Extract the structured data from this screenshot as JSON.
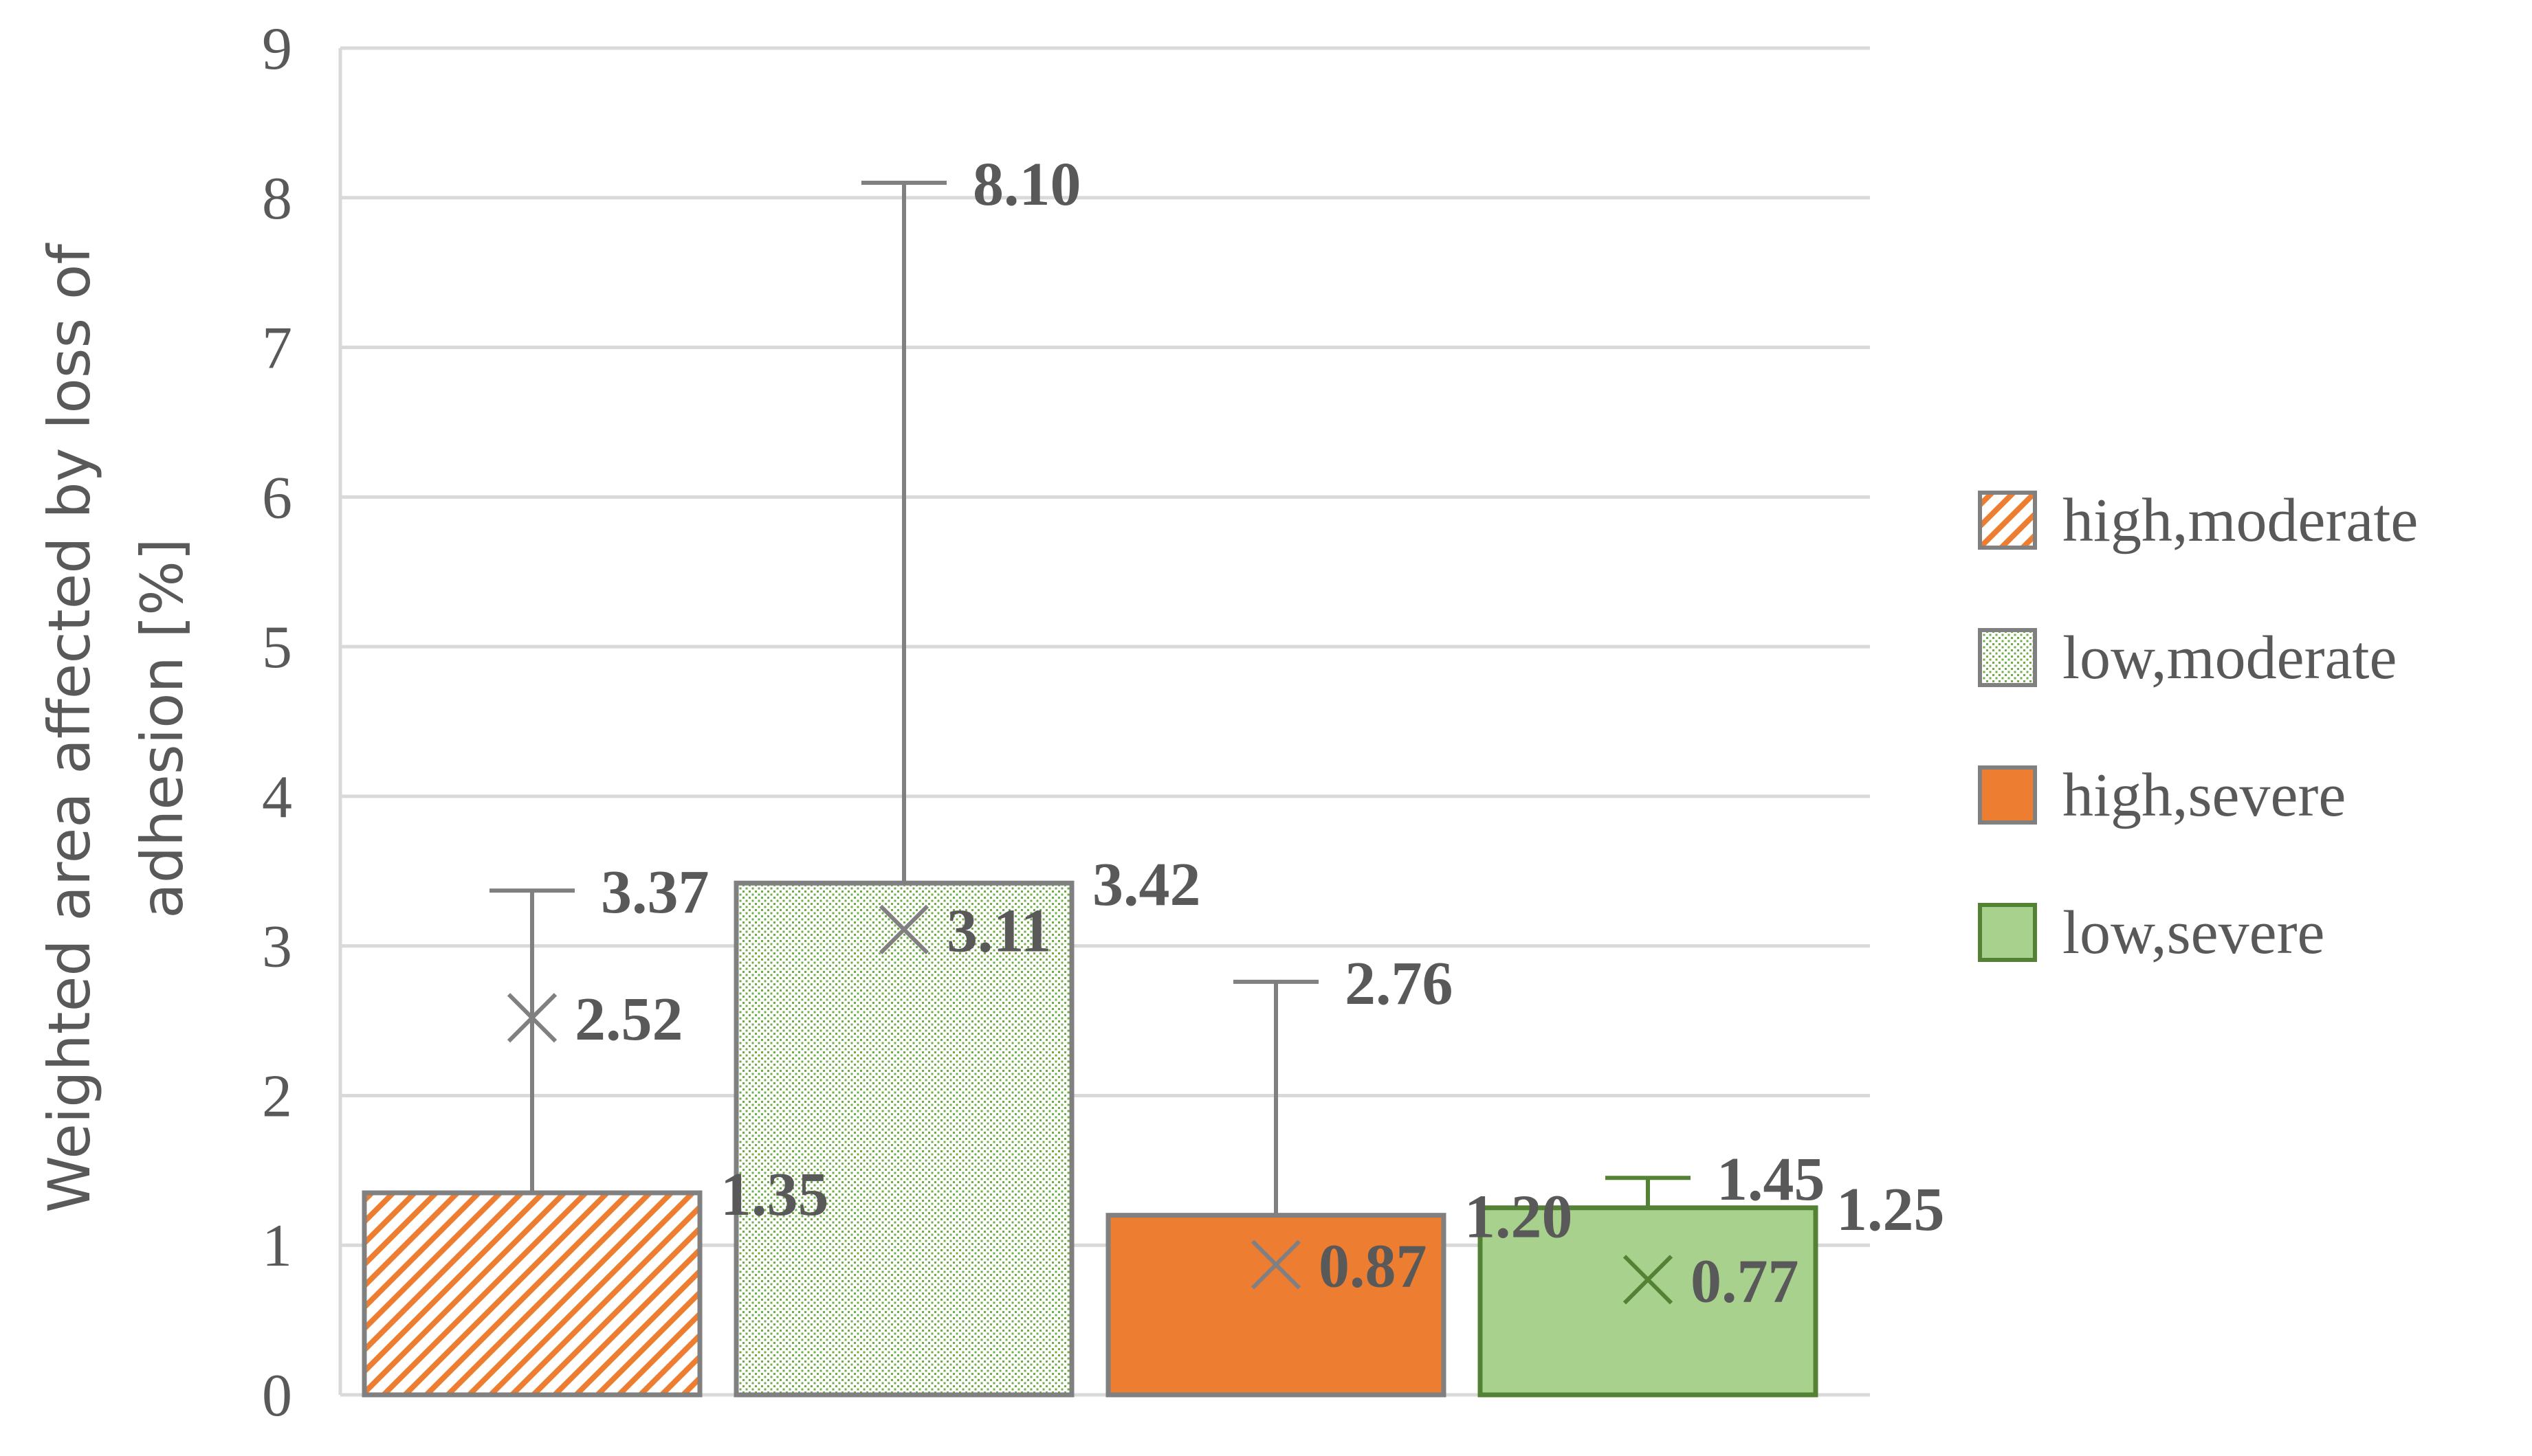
{
  "chart_data": {
    "type": "bar",
    "ylabel": "Weighted area affected by loss of adhesion [%]",
    "ylabel_lines": [
      "Weighted area affected by loss of",
      "adhesion [%]"
    ],
    "ylim": [
      0,
      9
    ],
    "yticks": [
      0,
      1,
      2,
      3,
      4,
      5,
      6,
      7,
      8,
      9
    ],
    "ytick_labels": [
      "0",
      "1",
      "2",
      "3",
      "4",
      "5",
      "6",
      "7",
      "8",
      "9"
    ],
    "grid": true,
    "legend_position": "right",
    "series": [
      {
        "name": "high,moderate",
        "value": 1.35,
        "value_label": "1.35",
        "mean": 2.52,
        "mean_label": "2.52",
        "whisker": 3.37,
        "whisker_label": "3.37",
        "fill": "#ED7D31",
        "pattern": "hatch",
        "edge": "#808080"
      },
      {
        "name": "low,moderate",
        "value": 3.42,
        "value_label": "3.42",
        "mean": 3.11,
        "mean_label": "3.11",
        "whisker": 8.1,
        "whisker_label": "8.10",
        "fill": "#70AD47",
        "pattern": "dots",
        "edge": "#808080"
      },
      {
        "name": "high,severe",
        "value": 1.2,
        "value_label": "1.20",
        "mean": 0.87,
        "mean_label": "0.87",
        "whisker": 2.76,
        "whisker_label": "2.76",
        "fill": "#ED7D31",
        "pattern": "solid",
        "edge": "#808080"
      },
      {
        "name": "low,severe",
        "value": 1.25,
        "value_label": "1.25",
        "mean": 0.77,
        "mean_label": "0.77",
        "whisker": 1.45,
        "whisker_label": "1.45",
        "fill": "#A9D18E",
        "pattern": "solid",
        "edge": "#548235"
      }
    ]
  }
}
